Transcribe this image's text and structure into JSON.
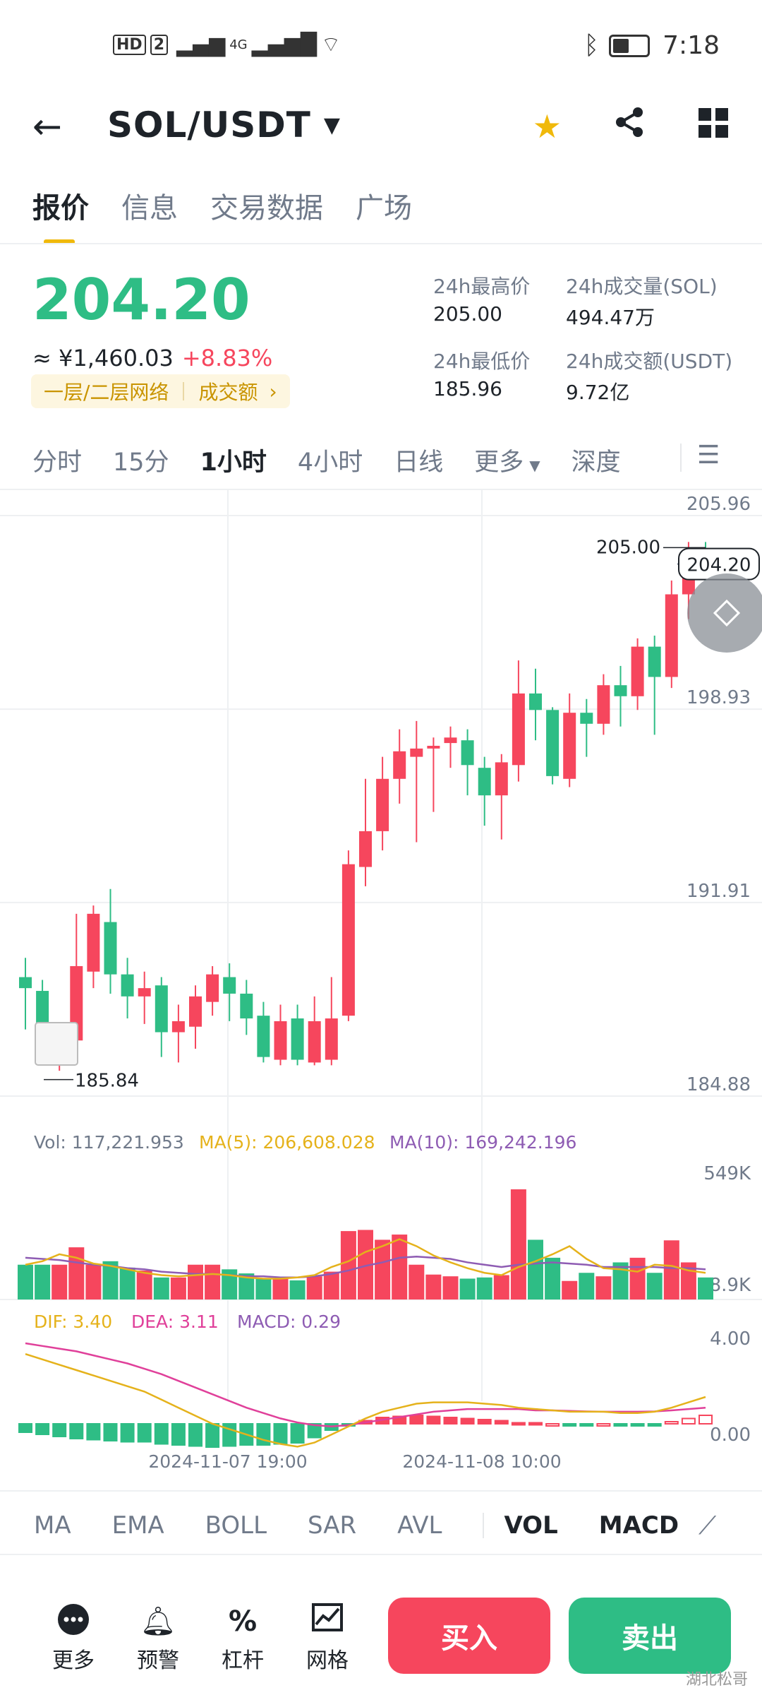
{
  "status_bar": {
    "hd": "HD",
    "sim": "2",
    "net": "4G",
    "time": "7:18"
  },
  "header": {
    "pair": "SOL/USDT"
  },
  "tabs": [
    "报价",
    "信息",
    "交易数据",
    "广场"
  ],
  "price": {
    "last": "204.20",
    "cny": "≈ ¥1,460.03",
    "change": "+8.83%",
    "tag_left": "一层/二层网络",
    "tag_right": "成交额"
  },
  "stats": {
    "high_label": "24h最高价",
    "high": "205.00",
    "vol_sol_label": "24h成交量(SOL)",
    "vol_sol": "494.47万",
    "low_label": "24h最低价",
    "low": "185.96",
    "vol_usdt_label": "24h成交额(USDT)",
    "vol_usdt": "9.72亿"
  },
  "intervals": [
    "分时",
    "15分",
    "1小时",
    "4小时",
    "日线",
    "更多",
    "深度"
  ],
  "chart_data": {
    "type": "candlestick",
    "price_axis": {
      "ticks": [
        205.96,
        198.93,
        191.91,
        184.88
      ]
    },
    "price_axis_labels": [
      "205.96",
      "198.93",
      "191.91",
      "184.88"
    ],
    "last_price_label": "204.20",
    "high_marker": "205.00",
    "low_marker": "185.84",
    "candles": [
      [
        189.2,
        188.8,
        189.9,
        187.3
      ],
      [
        188.7,
        186.5,
        189.1,
        186.2
      ],
      [
        186.6,
        186.9,
        187.4,
        185.8
      ],
      [
        186.9,
        189.6,
        191.5,
        186.4
      ],
      [
        189.4,
        191.5,
        191.8,
        188.8
      ],
      [
        191.2,
        189.3,
        192.4,
        188.6
      ],
      [
        189.3,
        188.5,
        189.9,
        187.7
      ],
      [
        188.5,
        188.8,
        189.4,
        187.5
      ],
      [
        188.9,
        187.2,
        189.2,
        186.3
      ],
      [
        187.2,
        187.6,
        188.2,
        186.1
      ],
      [
        187.4,
        188.5,
        188.9,
        186.6
      ],
      [
        188.3,
        189.3,
        189.6,
        187.8
      ],
      [
        189.2,
        188.6,
        189.7,
        187.6
      ],
      [
        188.6,
        187.7,
        189.1,
        187.1
      ],
      [
        187.8,
        186.3,
        188.3,
        186.1
      ],
      [
        186.2,
        187.6,
        188.2,
        186.0
      ],
      [
        187.7,
        186.2,
        188.2,
        186.0
      ],
      [
        186.1,
        187.6,
        188.5,
        186.0
      ],
      [
        186.2,
        187.7,
        189.2,
        186.0
      ],
      [
        187.8,
        193.3,
        193.8,
        187.6
      ],
      [
        193.2,
        194.5,
        196.4,
        192.5
      ],
      [
        194.5,
        196.4,
        197.2,
        193.8
      ],
      [
        196.4,
        197.4,
        198.2,
        195.5
      ],
      [
        197.2,
        197.5,
        198.5,
        194.1
      ],
      [
        197.5,
        197.6,
        197.9,
        195.2
      ],
      [
        197.7,
        197.9,
        198.3,
        196.8
      ],
      [
        197.8,
        196.9,
        198.2,
        195.8
      ],
      [
        196.8,
        195.8,
        197.2,
        194.7
      ],
      [
        195.8,
        197.0,
        197.3,
        194.2
      ],
      [
        196.9,
        199.5,
        200.7,
        196.3
      ],
      [
        199.5,
        198.9,
        200.4,
        197.8
      ],
      [
        198.9,
        196.5,
        199.0,
        196.2
      ],
      [
        196.4,
        198.8,
        199.5,
        196.1
      ],
      [
        198.8,
        198.4,
        199.3,
        197.2
      ],
      [
        198.4,
        199.8,
        200.2,
        198.0
      ],
      [
        199.8,
        199.4,
        200.5,
        198.3
      ],
      [
        199.4,
        201.2,
        201.5,
        198.9
      ],
      [
        201.2,
        200.1,
        201.6,
        198.0
      ],
      [
        200.1,
        203.1,
        203.6,
        199.7
      ],
      [
        203.1,
        204.4,
        205.0,
        202.2
      ],
      [
        204.4,
        203.9,
        205.0,
        203.6
      ]
    ],
    "volume": {
      "label": "Vol: 117,221.953",
      "ma5_label": "MA(5): 206,608.028",
      "ma10_label": "MA(10): 169,242.196",
      "axis_labels": [
        "549K",
        "78.9K"
      ]
    },
    "macd": {
      "dif_label": "DIF: 3.40",
      "dea_label": "DEA: 3.11",
      "macd_label": "MACD: 0.29",
      "axis_labels": [
        "4.00",
        "0.00"
      ]
    },
    "time_labels": [
      "2024-11-07 19:00",
      "2024-11-08 10:00"
    ],
    "colors": {
      "up": "#f6465d",
      "down": "#2ebd85",
      "ma5": "#e5b21b",
      "ma10": "#8e5cb3",
      "dea": "#e0409a"
    }
  },
  "indicator_tabs": [
    "MA",
    "EMA",
    "BOLL",
    "SAR",
    "AVL",
    "VOL",
    "MACD"
  ],
  "bottom_bar": {
    "items": [
      "更多",
      "预警",
      "杠杆",
      "网格"
    ],
    "buy": "买入",
    "sell": "卖出",
    "watermark": "湖北松哥"
  }
}
